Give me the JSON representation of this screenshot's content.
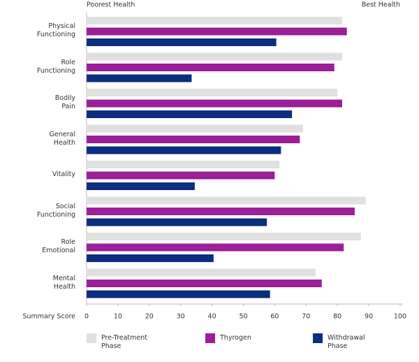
{
  "chart_data": {
    "type": "bar",
    "orientation": "horizontal",
    "left_label": "Poorest Health",
    "right_label": "Best Health",
    "x_label": "Summary Score",
    "categories": [
      "Physical Functioning",
      "Role Functioning",
      "Bodily Pain",
      "General Health",
      "Vitality",
      "Social Functioning",
      "Role Emotional",
      "Mental Health"
    ],
    "series": [
      {
        "name": "Pre-Treatment Phase",
        "color": "#e0e0e0",
        "values": [
          81.5,
          81.5,
          80,
          69,
          61.5,
          89,
          87.5,
          73
        ]
      },
      {
        "name": "Thyrogen",
        "color": "#9c1e98",
        "values": [
          83,
          79,
          81.5,
          68,
          60,
          85.5,
          82,
          75
        ]
      },
      {
        "name": "Withdrawal Phase",
        "color": "#0b2f7e",
        "values": [
          60.5,
          33.5,
          65.5,
          62,
          34.5,
          57.5,
          40.5,
          58.5
        ]
      }
    ],
    "xlim": [
      0,
      100
    ],
    "xticks": [
      0,
      10,
      20,
      30,
      40,
      50,
      60,
      70,
      80,
      90,
      100
    ]
  }
}
